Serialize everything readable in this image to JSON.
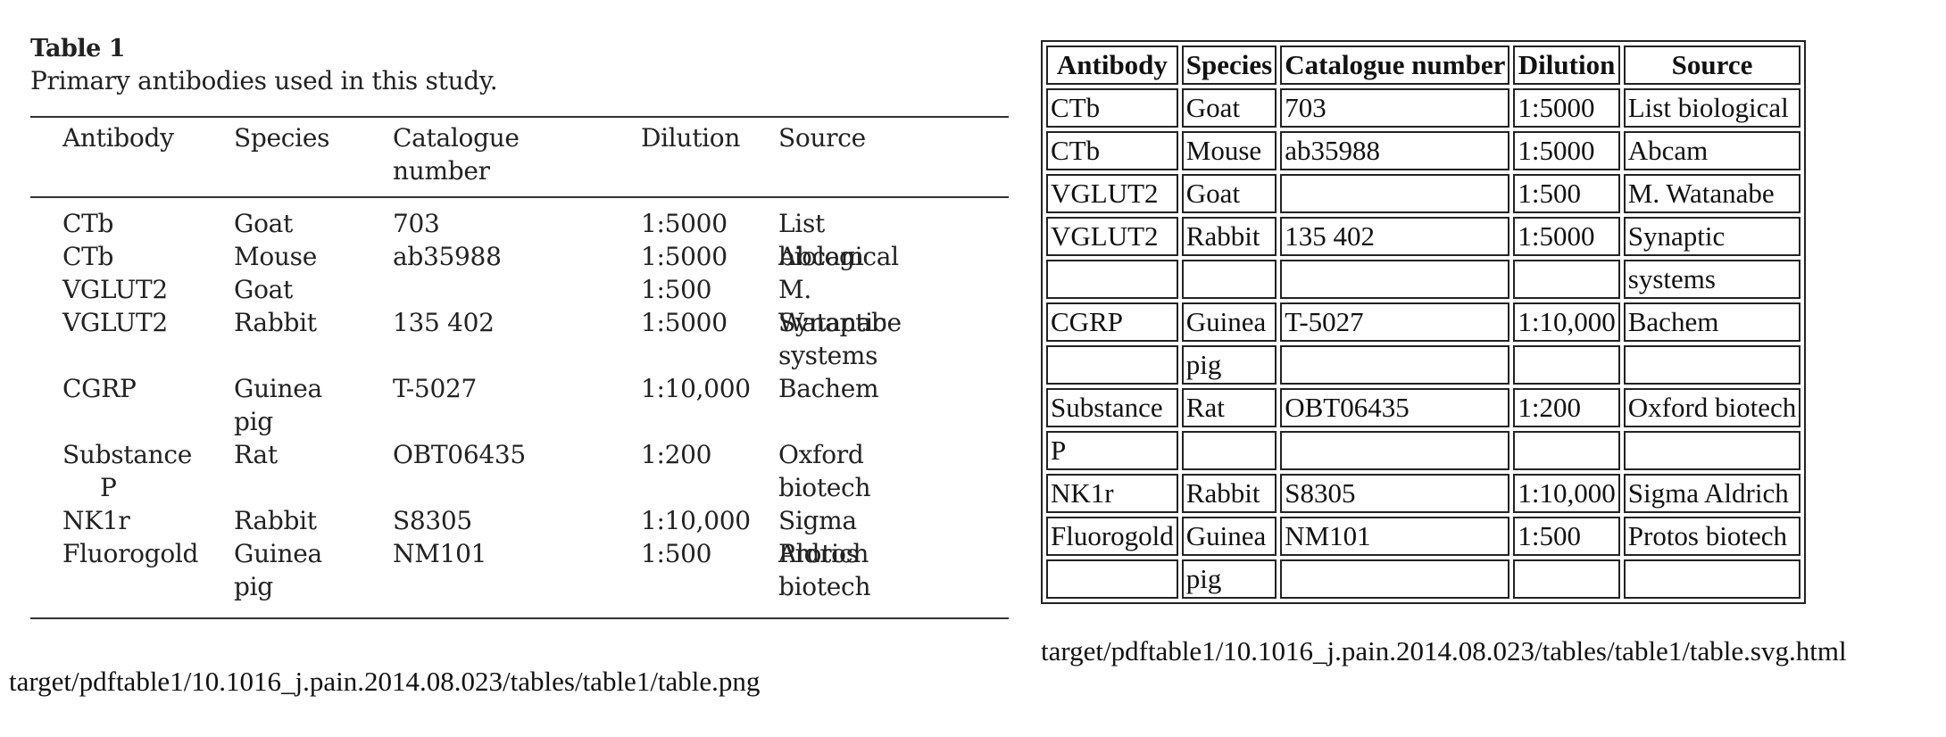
{
  "left": {
    "title": "Table 1",
    "caption": "Primary antibodies used in this study.",
    "headers": [
      "Antibody",
      "Species",
      "Catalogue number",
      "Dilution",
      "Source"
    ],
    "rows": [
      [
        "CTb",
        "Goat",
        "703",
        "1:5000",
        "List biological"
      ],
      [
        "CTb",
        "Mouse",
        "ab35988",
        "1:5000",
        "Abcam"
      ],
      [
        "VGLUT2",
        "Goat",
        "",
        "1:500",
        "M. Watanabe"
      ],
      [
        "VGLUT2",
        "Rabbit",
        "135 402",
        "1:5000",
        "Synaptic systems"
      ],
      [
        "CGRP",
        "Guinea pig",
        "T-5027",
        "1:10,000",
        "Bachem"
      ],
      [
        "Substance P",
        "Rat",
        "OBT06435",
        "1:200",
        "Oxford biotech"
      ],
      [
        "NK1r",
        "Rabbit",
        "S8305",
        "1:10,000",
        "Sigma Aldrich"
      ],
      [
        "Fluorogold",
        "Guinea pig",
        "NM101",
        "1:500",
        "Protos biotech"
      ]
    ],
    "path": "target/pdftable1/10.1016_j.pain.2014.08.023/tables/table1/table.png"
  },
  "right": {
    "headers": [
      "Antibody",
      "Species",
      "Catalogue number",
      "Dilution",
      "Source"
    ],
    "rows": [
      [
        "CTb",
        "Goat",
        "703",
        "1:5000",
        "List biological"
      ],
      [
        "CTb",
        "Mouse",
        "ab35988",
        "1:5000",
        "Abcam"
      ],
      [
        "VGLUT2",
        "Goat",
        "",
        "1:500",
        "M. Watanabe"
      ],
      [
        "VGLUT2",
        "Rabbit",
        "135 402",
        "1:5000",
        "Synaptic"
      ],
      [
        "",
        "",
        "",
        "",
        "systems"
      ],
      [
        "CGRP",
        "Guinea",
        "T-5027",
        "1:10,000",
        "Bachem"
      ],
      [
        "",
        "pig",
        "",
        "",
        ""
      ],
      [
        "Substance",
        "Rat",
        "OBT06435",
        "1:200",
        "Oxford biotech"
      ],
      [
        "P",
        "",
        "",
        "",
        ""
      ],
      [
        "NK1r",
        "Rabbit",
        "S8305",
        "1:10,000",
        "Sigma Aldrich"
      ],
      [
        "Fluorogold",
        "Guinea",
        "NM101",
        "1:500",
        "Protos biotech"
      ],
      [
        "",
        "pig",
        "",
        "",
        ""
      ]
    ],
    "path": "target/pdftable1/10.1016_j.pain.2014.08.023/tables/table1/table.svg.html"
  }
}
